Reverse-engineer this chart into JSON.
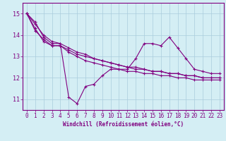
{
  "xlabel": "Windchill (Refroidissement éolien,°C)",
  "bg_color": "#d4eef4",
  "line_color": "#800080",
  "grid_color": "#aaccdd",
  "xlim": [
    -0.5,
    23.5
  ],
  "ylim": [
    10.5,
    15.5
  ],
  "yticks": [
    11,
    12,
    13,
    14,
    15
  ],
  "xticks": [
    0,
    1,
    2,
    3,
    4,
    5,
    6,
    7,
    8,
    9,
    10,
    11,
    12,
    13,
    14,
    15,
    16,
    17,
    18,
    19,
    20,
    21,
    22,
    23
  ],
  "line1": [
    15.0,
    14.6,
    13.9,
    13.6,
    13.6,
    11.1,
    10.8,
    11.6,
    11.7,
    12.1,
    12.4,
    12.4,
    12.4,
    12.9,
    13.6,
    13.6,
    13.5,
    13.9,
    13.4,
    12.9,
    12.4,
    12.3,
    12.2,
    12.2
  ],
  "line2": [
    15.0,
    14.2,
    13.8,
    13.5,
    13.5,
    13.3,
    13.1,
    13.0,
    12.9,
    12.8,
    12.7,
    12.6,
    12.5,
    12.4,
    12.4,
    12.3,
    12.3,
    12.2,
    12.2,
    12.1,
    12.1,
    12.0,
    12.0,
    12.0
  ],
  "line3": [
    15.0,
    14.5,
    14.0,
    13.7,
    13.6,
    13.4,
    13.2,
    13.1,
    12.9,
    12.8,
    12.7,
    12.6,
    12.5,
    12.5,
    12.4,
    12.3,
    12.3,
    12.2,
    12.2,
    12.1,
    12.1,
    12.0,
    12.0,
    12.0
  ],
  "line4": [
    15.0,
    14.3,
    13.7,
    13.5,
    13.5,
    13.2,
    13.0,
    12.8,
    12.7,
    12.6,
    12.5,
    12.4,
    12.3,
    12.3,
    12.2,
    12.2,
    12.1,
    12.1,
    12.0,
    12.0,
    11.9,
    11.9,
    11.9,
    11.9
  ]
}
